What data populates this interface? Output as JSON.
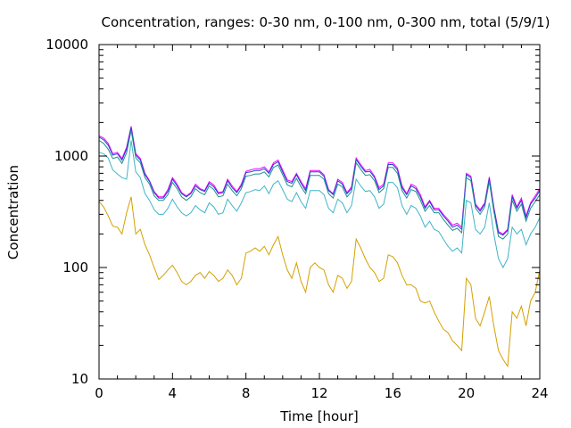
{
  "chart_data": {
    "type": "line",
    "title": "Concentration, ranges: 0-30 nm, 0-100 nm, 0-300 nm, total (5/9/1)",
    "xlabel": "Time [hour]",
    "ylabel": "Concentration",
    "xlim": [
      0,
      24
    ],
    "ylim": [
      10,
      10000
    ],
    "yscale": "log",
    "grid": false,
    "legend": "none",
    "x_ticks": [
      "0",
      "4",
      "8",
      "12",
      "16",
      "20",
      "24"
    ],
    "y_ticks": [
      "10",
      "100",
      "1000",
      "10000"
    ],
    "x": [
      0,
      0.25,
      0.5,
      0.75,
      1,
      1.25,
      1.5,
      1.75,
      2,
      2.25,
      2.5,
      2.75,
      3,
      3.25,
      3.5,
      3.75,
      4,
      4.25,
      4.5,
      4.75,
      5,
      5.25,
      5.5,
      5.75,
      6,
      6.25,
      6.5,
      6.75,
      7,
      7.25,
      7.5,
      7.75,
      8,
      8.25,
      8.5,
      8.75,
      9,
      9.25,
      9.5,
      9.75,
      10,
      10.25,
      10.5,
      10.75,
      11,
      11.25,
      11.5,
      11.75,
      12,
      12.25,
      12.5,
      12.75,
      13,
      13.25,
      13.5,
      13.75,
      14,
      14.25,
      14.5,
      14.75,
      15,
      15.25,
      15.5,
      15.75,
      16,
      16.25,
      16.5,
      16.75,
      17,
      17.25,
      17.5,
      17.75,
      18,
      18.25,
      18.5,
      18.75,
      19,
      19.25,
      19.5,
      19.75,
      20,
      20.25,
      20.5,
      20.75,
      21,
      21.25,
      21.5,
      21.75,
      22,
      22.25,
      22.5,
      22.75,
      23,
      23.25,
      23.5,
      23.75,
      24
    ],
    "series": [
      {
        "color": "#ff00ff",
        "values": [
          1520,
          1450,
          1300,
          1050,
          1080,
          950,
          1200,
          1850,
          1050,
          950,
          700,
          600,
          480,
          430,
          430,
          500,
          640,
          560,
          470,
          440,
          470,
          560,
          510,
          490,
          590,
          550,
          470,
          480,
          620,
          540,
          480,
          560,
          730,
          750,
          770,
          770,
          800,
          720,
          870,
          920,
          750,
          610,
          590,
          700,
          590,
          510,
          740,
          740,
          740,
          680,
          500,
          460,
          620,
          580,
          470,
          530,
          960,
          840,
          740,
          760,
          660,
          520,
          560,
          870,
          870,
          780,
          540,
          460,
          560,
          530,
          450,
          350,
          400,
          340,
          340,
          300,
          270,
          240,
          250,
          230,
          700,
          660,
          370,
          330,
          380,
          650,
          350,
          210,
          200,
          220,
          450,
          350,
          420,
          290,
          380,
          440,
          510
        ]
      },
      {
        "color": "#1f3fcf",
        "values": [
          1480,
          1400,
          1250,
          1020,
          1050,
          920,
          1150,
          1800,
          1020,
          920,
          680,
          590,
          470,
          420,
          420,
          480,
          620,
          540,
          460,
          430,
          460,
          540,
          500,
          480,
          570,
          530,
          460,
          470,
          600,
          520,
          470,
          540,
          710,
          720,
          740,
          740,
          770,
          700,
          840,
          890,
          720,
          590,
          570,
          680,
          570,
          490,
          720,
          720,
          720,
          660,
          490,
          450,
          600,
          560,
          460,
          510,
          930,
          810,
          720,
          730,
          640,
          500,
          540,
          840,
          840,
          750,
          520,
          450,
          540,
          510,
          430,
          340,
          390,
          330,
          330,
          290,
          260,
          230,
          240,
          220,
          680,
          640,
          360,
          320,
          370,
          630,
          340,
          205,
          195,
          215,
          430,
          340,
          400,
          280,
          370,
          420,
          490
        ]
      },
      {
        "color": "#1f8f8f",
        "values": [
          1380,
          1300,
          1150,
          950,
          980,
          860,
          1070,
          1700,
          960,
          870,
          640,
          560,
          440,
          400,
          400,
          450,
          580,
          510,
          430,
          400,
          430,
          510,
          470,
          450,
          540,
          500,
          430,
          440,
          560,
          490,
          440,
          510,
          660,
          670,
          690,
          690,
          720,
          650,
          790,
          830,
          680,
          550,
          530,
          630,
          530,
          460,
          670,
          670,
          670,
          620,
          460,
          420,
          560,
          530,
          430,
          480,
          870,
          760,
          670,
          680,
          600,
          470,
          510,
          790,
          790,
          700,
          490,
          420,
          500,
          480,
          400,
          320,
          360,
          310,
          310,
          270,
          240,
          215,
          225,
          205,
          640,
          600,
          340,
          300,
          350,
          590,
          320,
          190,
          180,
          200,
          400,
          320,
          370,
          260,
          340,
          390,
          450
        ]
      },
      {
        "color": "#3fb4c8",
        "values": [
          1080,
          1050,
          960,
          750,
          690,
          640,
          620,
          1380,
          720,
          640,
          460,
          400,
          330,
          300,
          300,
          340,
          410,
          350,
          310,
          290,
          310,
          360,
          330,
          310,
          380,
          350,
          300,
          310,
          410,
          360,
          320,
          380,
          470,
          480,
          500,
          490,
          540,
          460,
          560,
          600,
          500,
          410,
          390,
          470,
          390,
          340,
          490,
          490,
          490,
          450,
          340,
          310,
          410,
          380,
          310,
          360,
          620,
          540,
          480,
          490,
          430,
          340,
          370,
          580,
          580,
          520,
          360,
          300,
          360,
          340,
          290,
          230,
          260,
          220,
          210,
          180,
          155,
          140,
          150,
          135,
          400,
          380,
          220,
          200,
          230,
          380,
          200,
          120,
          100,
          120,
          230,
          200,
          220,
          160,
          200,
          230,
          280
        ]
      },
      {
        "color": "#d4a000",
        "values": [
          390,
          350,
          290,
          235,
          230,
          200,
          310,
          430,
          200,
          220,
          160,
          130,
          100,
          78,
          85,
          95,
          105,
          90,
          75,
          70,
          75,
          85,
          90,
          80,
          92,
          85,
          75,
          80,
          95,
          85,
          70,
          80,
          135,
          140,
          150,
          140,
          155,
          130,
          160,
          190,
          130,
          95,
          80,
          110,
          75,
          60,
          100,
          110,
          100,
          95,
          70,
          60,
          85,
          80,
          65,
          75,
          180,
          150,
          120,
          100,
          90,
          75,
          80,
          130,
          125,
          110,
          85,
          70,
          70,
          65,
          50,
          48,
          50,
          40,
          33,
          28,
          26,
          22,
          20,
          18,
          80,
          70,
          35,
          30,
          40,
          55,
          30,
          18,
          15,
          13,
          40,
          35,
          45,
          30,
          50,
          60,
          95
        ]
      }
    ]
  }
}
